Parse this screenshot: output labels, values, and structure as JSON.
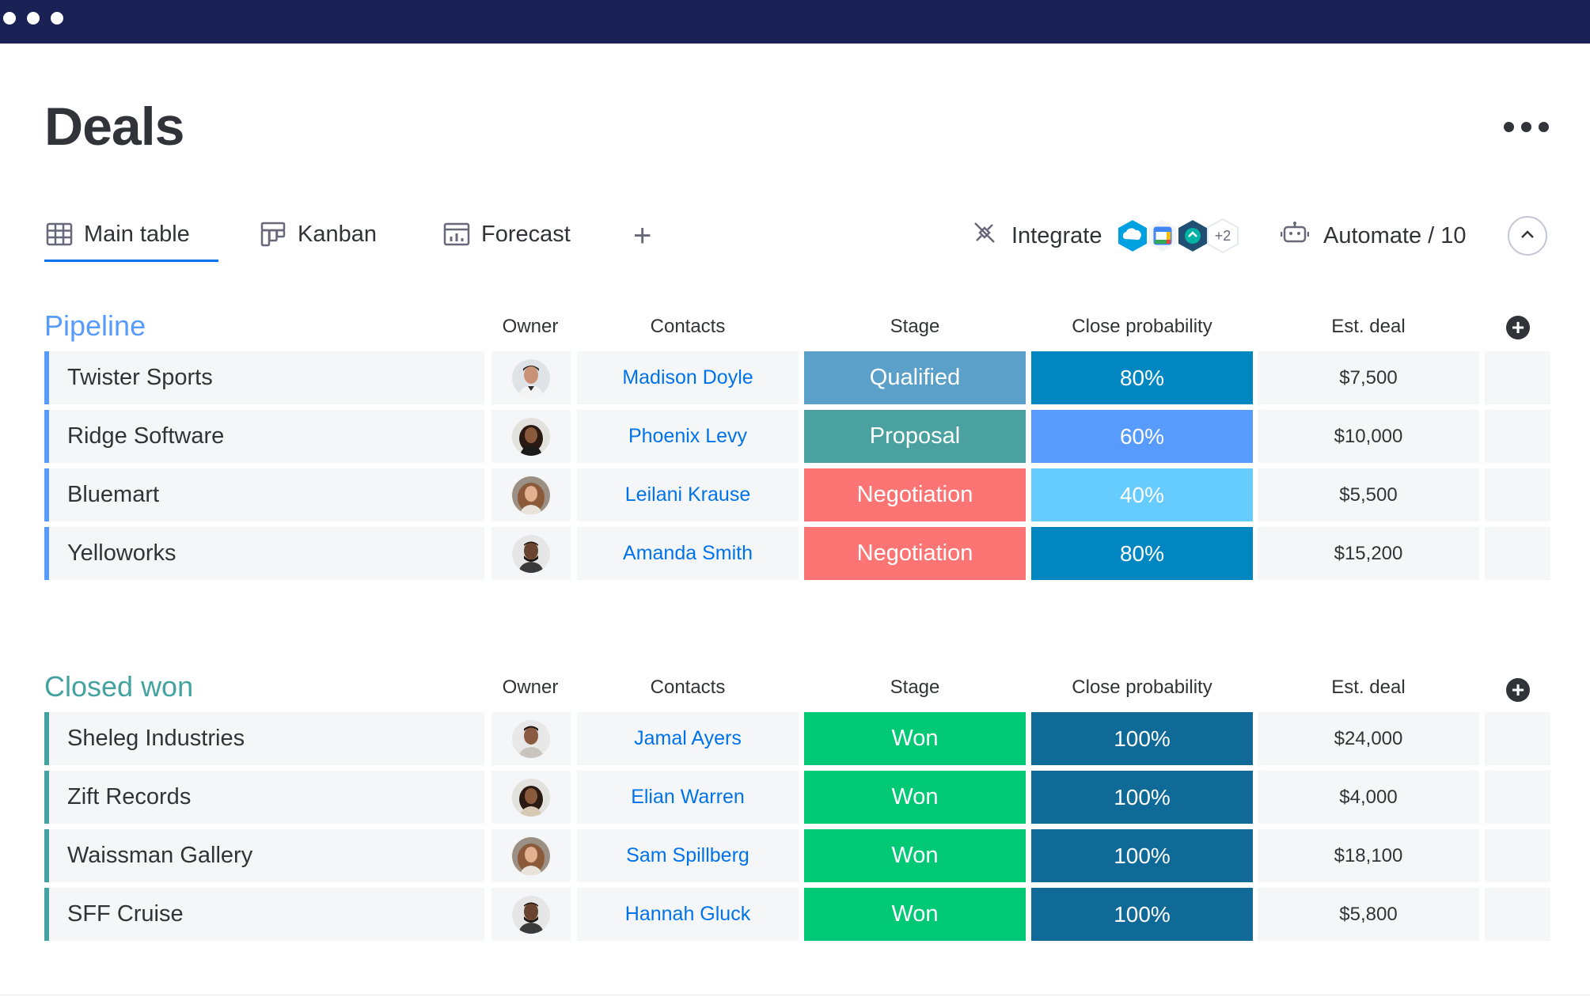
{
  "window": {
    "dots": 3
  },
  "page": {
    "title": "Deals"
  },
  "colors": {
    "topbar": "#192155",
    "accent": "#0073ea",
    "pipeline": "#579bfc",
    "closed_won": "#44a3a0",
    "stage": {
      "Qualified": "#5aa0c8",
      "Proposal": "#4aa19f",
      "Negotiation": "#fc7474",
      "Won": "#00c875"
    },
    "prob": {
      "80%": "#0086c0",
      "60%": "#579bfc",
      "40%": "#66ccff",
      "100%": "#0f6a98"
    }
  },
  "views": {
    "tabs": [
      {
        "label": "Main table",
        "icon": "table-icon",
        "active": true
      },
      {
        "label": "Kanban",
        "icon": "kanban-icon",
        "active": false
      },
      {
        "label": "Forecast",
        "icon": "chart-icon",
        "active": false
      }
    ],
    "add_label": "+",
    "integrate_label": "Integrate",
    "integrations": [
      "salesforce-icon",
      "google-calendar-icon",
      "app-icon"
    ],
    "integrations_more": "+2",
    "automate_label": "Automate / 10"
  },
  "columns": [
    "Owner",
    "Contacts",
    "Stage",
    "Close probability",
    "Est. deal"
  ],
  "groups": [
    {
      "title": "Pipeline",
      "rows": [
        {
          "name": "Twister Sports",
          "owner": "avatar-man-1",
          "contact": "Madison Doyle",
          "stage": "Qualified",
          "probability": "80%",
          "deal": "$7,500"
        },
        {
          "name": "Ridge Software",
          "owner": "avatar-woman-1",
          "contact": "Phoenix Levy",
          "stage": "Proposal",
          "probability": "60%",
          "deal": "$10,000"
        },
        {
          "name": "Bluemart",
          "owner": "avatar-woman-2",
          "contact": "Leilani Krause",
          "stage": "Negotiation",
          "probability": "40%",
          "deal": "$5,500"
        },
        {
          "name": "Yelloworks",
          "owner": "avatar-man-2",
          "contact": "Amanda Smith",
          "stage": "Negotiation",
          "probability": "80%",
          "deal": "$15,200"
        }
      ]
    },
    {
      "title": "Closed won",
      "rows": [
        {
          "name": "Sheleg Industries",
          "owner": "avatar-man-3",
          "contact": "Jamal Ayers",
          "stage": "Won",
          "probability": "100%",
          "deal": "$24,000"
        },
        {
          "name": "Zift Records",
          "owner": "avatar-woman-1",
          "contact": "Elian Warren",
          "stage": "Won",
          "probability": "100%",
          "deal": "$4,000"
        },
        {
          "name": "Waissman Gallery",
          "owner": "avatar-woman-2",
          "contact": "Sam Spillberg",
          "stage": "Won",
          "probability": "100%",
          "deal": "$18,100"
        },
        {
          "name": "SFF Cruise",
          "owner": "avatar-man-2",
          "contact": "Hannah Gluck",
          "stage": "Won",
          "probability": "100%",
          "deal": "$5,800"
        }
      ]
    }
  ]
}
